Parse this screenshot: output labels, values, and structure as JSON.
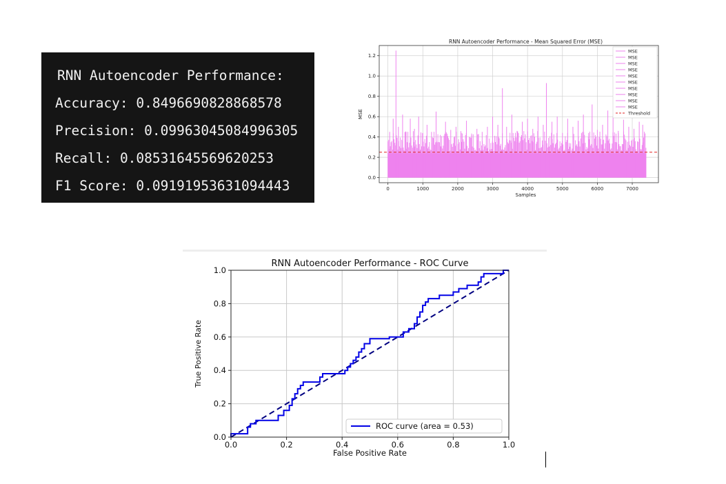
{
  "metrics": {
    "title": "RNN Autoencoder Performance:",
    "items": [
      {
        "label": "Accuracy",
        "value": "0.8496690828868578"
      },
      {
        "label": "Precision",
        "value": "0.09963045084996305"
      },
      {
        "label": "Recall",
        "value": "0.08531645569620253"
      },
      {
        "label": "F1 Score",
        "value": "0.09191953631094443"
      }
    ]
  },
  "chart_data": [
    {
      "type": "bar",
      "title": "RNN Autoencoder Performance - Mean Squared Error (MSE)",
      "xlabel": "Samples",
      "ylabel": "MSE",
      "xlim": [
        -250,
        7750
      ],
      "ylim": [
        -0.05,
        1.3
      ],
      "xticks": [
        0,
        1000,
        2000,
        3000,
        4000,
        5000,
        6000,
        7000
      ],
      "yticks": [
        0.0,
        0.2,
        0.4,
        0.6,
        0.8,
        1.0,
        1.2
      ],
      "n_samples": 7400,
      "series": [
        {
          "name": "MSE",
          "color": "#ee82ee"
        },
        {
          "name": "MSE",
          "color": "#ee82ee"
        },
        {
          "name": "MSE",
          "color": "#ee82ee"
        },
        {
          "name": "MSE",
          "color": "#ee82ee"
        },
        {
          "name": "MSE",
          "color": "#ee82ee"
        },
        {
          "name": "MSE",
          "color": "#ee82ee"
        },
        {
          "name": "MSE",
          "color": "#ee82ee"
        },
        {
          "name": "MSE",
          "color": "#ee82ee"
        },
        {
          "name": "MSE",
          "color": "#ee82ee"
        },
        {
          "name": "MSE",
          "color": "#ee82ee"
        }
      ],
      "base_level": 0.24,
      "peaks": [
        [
          50,
          0.45
        ],
        [
          150,
          0.58
        ],
        [
          230,
          1.25
        ],
        [
          300,
          0.5
        ],
        [
          420,
          0.62
        ],
        [
          520,
          0.45
        ],
        [
          640,
          0.58
        ],
        [
          760,
          0.48
        ],
        [
          880,
          0.6
        ],
        [
          1000,
          0.44
        ],
        [
          1120,
          0.52
        ],
        [
          1250,
          0.45
        ],
        [
          1380,
          0.65
        ],
        [
          1500,
          0.42
        ],
        [
          1650,
          0.55
        ],
        [
          1800,
          0.47
        ],
        [
          1950,
          0.5
        ],
        [
          2100,
          0.44
        ],
        [
          2250,
          0.56
        ],
        [
          2400,
          0.42
        ],
        [
          2550,
          0.48
        ],
        [
          2700,
          0.45
        ],
        [
          2850,
          0.5
        ],
        [
          3000,
          0.6
        ],
        [
          3150,
          0.52
        ],
        [
          3280,
          0.88
        ],
        [
          3400,
          0.5
        ],
        [
          3550,
          0.62
        ],
        [
          3700,
          0.46
        ],
        [
          3850,
          0.55
        ],
        [
          4000,
          0.58
        ],
        [
          4150,
          0.48
        ],
        [
          4300,
          0.6
        ],
        [
          4450,
          0.52
        ],
        [
          4540,
          0.93
        ],
        [
          4700,
          0.55
        ],
        [
          4850,
          0.6
        ],
        [
          5000,
          0.44
        ],
        [
          5150,
          0.58
        ],
        [
          5300,
          0.5
        ],
        [
          5450,
          0.56
        ],
        [
          5600,
          0.62
        ],
        [
          5750,
          0.44
        ],
        [
          5850,
          0.72
        ],
        [
          6000,
          0.47
        ],
        [
          6150,
          0.52
        ],
        [
          6300,
          0.66
        ],
        [
          6450,
          0.6
        ],
        [
          6600,
          0.46
        ],
        [
          6750,
          0.57
        ],
        [
          6900,
          0.5
        ],
        [
          7050,
          0.48
        ],
        [
          7200,
          0.55
        ],
        [
          7300,
          0.52
        ]
      ],
      "threshold": {
        "name": "Threshold",
        "value": 0.25,
        "color": "#e02020",
        "style": "dashed"
      },
      "legend_position": "top-right",
      "grid": true
    },
    {
      "type": "line",
      "title": "RNN Autoencoder Performance - ROC Curve",
      "xlabel": "False Positive Rate",
      "ylabel": "True Positive Rate",
      "xlim": [
        0.0,
        1.0
      ],
      "ylim": [
        0.0,
        1.0
      ],
      "xticks": [
        0.0,
        0.2,
        0.4,
        0.6,
        0.8,
        1.0
      ],
      "yticks": [
        0.0,
        0.2,
        0.4,
        0.6,
        0.8,
        1.0
      ],
      "series": [
        {
          "name": "ROC curve (area = 0.53)",
          "color": "#0000e6",
          "style": "step",
          "points": [
            [
              0.0,
              0.0
            ],
            [
              0.0,
              0.02
            ],
            [
              0.06,
              0.02
            ],
            [
              0.06,
              0.06
            ],
            [
              0.07,
              0.06
            ],
            [
              0.07,
              0.08
            ],
            [
              0.09,
              0.08
            ],
            [
              0.09,
              0.1
            ],
            [
              0.17,
              0.1
            ],
            [
              0.17,
              0.13
            ],
            [
              0.19,
              0.13
            ],
            [
              0.19,
              0.16
            ],
            [
              0.21,
              0.16
            ],
            [
              0.21,
              0.19
            ],
            [
              0.22,
              0.19
            ],
            [
              0.22,
              0.23
            ],
            [
              0.23,
              0.23
            ],
            [
              0.23,
              0.26
            ],
            [
              0.24,
              0.26
            ],
            [
              0.24,
              0.29
            ],
            [
              0.25,
              0.29
            ],
            [
              0.25,
              0.31
            ],
            [
              0.26,
              0.31
            ],
            [
              0.26,
              0.33
            ],
            [
              0.32,
              0.33
            ],
            [
              0.32,
              0.36
            ],
            [
              0.33,
              0.36
            ],
            [
              0.33,
              0.38
            ],
            [
              0.41,
              0.38
            ],
            [
              0.41,
              0.4
            ],
            [
              0.42,
              0.4
            ],
            [
              0.42,
              0.42
            ],
            [
              0.43,
              0.42
            ],
            [
              0.43,
              0.44
            ],
            [
              0.44,
              0.44
            ],
            [
              0.44,
              0.46
            ],
            [
              0.45,
              0.46
            ],
            [
              0.45,
              0.48
            ],
            [
              0.46,
              0.48
            ],
            [
              0.46,
              0.51
            ],
            [
              0.47,
              0.51
            ],
            [
              0.47,
              0.53
            ],
            [
              0.48,
              0.53
            ],
            [
              0.48,
              0.56
            ],
            [
              0.5,
              0.56
            ],
            [
              0.5,
              0.59
            ],
            [
              0.57,
              0.59
            ],
            [
              0.57,
              0.6
            ],
            [
              0.62,
              0.6
            ],
            [
              0.62,
              0.63
            ],
            [
              0.64,
              0.63
            ],
            [
              0.64,
              0.65
            ],
            [
              0.66,
              0.65
            ],
            [
              0.66,
              0.68
            ],
            [
              0.67,
              0.68
            ],
            [
              0.67,
              0.72
            ],
            [
              0.68,
              0.72
            ],
            [
              0.68,
              0.75
            ],
            [
              0.69,
              0.75
            ],
            [
              0.69,
              0.79
            ],
            [
              0.7,
              0.79
            ],
            [
              0.7,
              0.81
            ],
            [
              0.71,
              0.81
            ],
            [
              0.71,
              0.83
            ],
            [
              0.75,
              0.83
            ],
            [
              0.75,
              0.85
            ],
            [
              0.8,
              0.85
            ],
            [
              0.8,
              0.87
            ],
            [
              0.82,
              0.87
            ],
            [
              0.82,
              0.89
            ],
            [
              0.85,
              0.89
            ],
            [
              0.85,
              0.91
            ],
            [
              0.89,
              0.91
            ],
            [
              0.89,
              0.93
            ],
            [
              0.9,
              0.93
            ],
            [
              0.9,
              0.96
            ],
            [
              0.91,
              0.96
            ],
            [
              0.91,
              0.98
            ],
            [
              0.98,
              0.98
            ],
            [
              0.98,
              1.0
            ],
            [
              1.0,
              1.0
            ]
          ]
        }
      ],
      "reference_line": {
        "points": [
          [
            0.0,
            0.0
          ],
          [
            1.0,
            1.0
          ]
        ],
        "color": "#000080",
        "style": "dashed"
      },
      "legend_position": "lower-right",
      "grid": true
    }
  ]
}
